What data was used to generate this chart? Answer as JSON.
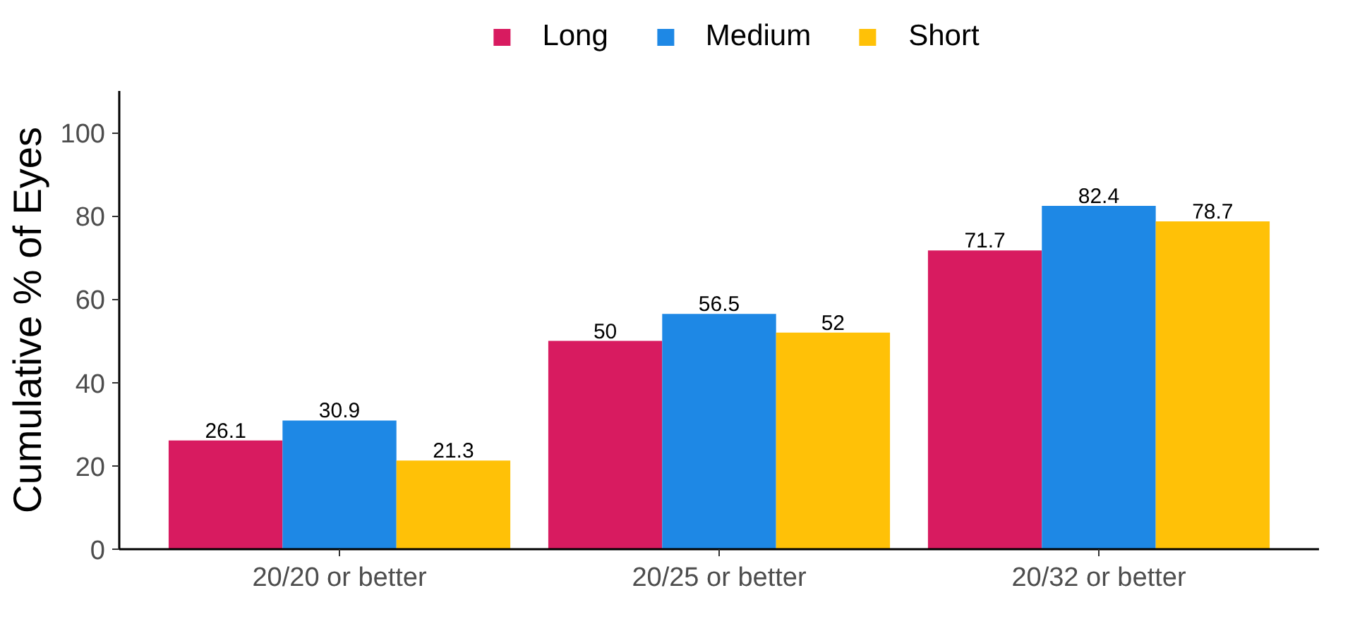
{
  "chart_data": {
    "type": "bar",
    "ylabel": "Cumulative % of Eyes",
    "categories": [
      "20/20 or better",
      "20/25 or better",
      "20/32 or better"
    ],
    "series": [
      {
        "name": "Long",
        "color": "#d81b60",
        "values": [
          26.1,
          50,
          71.7
        ]
      },
      {
        "name": "Medium",
        "color": "#1e88e5",
        "values": [
          30.9,
          56.5,
          82.4
        ]
      },
      {
        "name": "Short",
        "color": "#ffc107",
        "values": [
          21.3,
          52,
          78.7
        ]
      }
    ],
    "ylim": [
      0,
      110
    ],
    "yticks": [
      0,
      20,
      40,
      60,
      80,
      100
    ],
    "grid": false,
    "legend": "top",
    "data_labels": true
  }
}
